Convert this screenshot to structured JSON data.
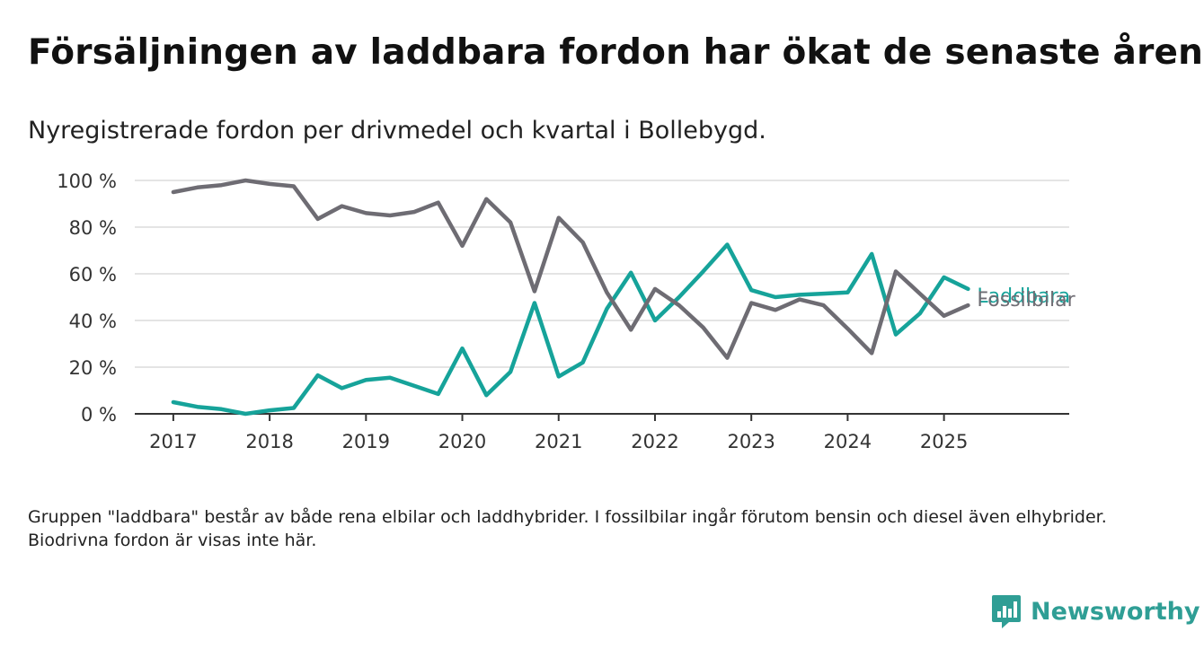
{
  "title": "Försäljningen av laddbara fordon har ökat de senaste åren",
  "subtitle": "Nyregistrerade fordon per drivmedel och kvartal i Bollebygd.",
  "note": "Gruppen \"laddbara\" består av både rena elbilar och laddhybrider. I fossilbilar ingår förutom bensin och diesel även elhybrider. Biodrivna fordon är visas inte här.",
  "brand": {
    "name": "Newsworthy",
    "icon": "newsworthy-logo-icon"
  },
  "colors": {
    "laddbara": "#16a39a",
    "fossil": "#6e6c73",
    "grid": "#dcdcdc",
    "axis": "#333333",
    "brand": "#2f9e95"
  },
  "chart_data": {
    "type": "line",
    "x": [
      2017.0,
      2017.25,
      2017.5,
      2017.75,
      2018.0,
      2018.25,
      2018.5,
      2018.75,
      2019.0,
      2019.25,
      2019.5,
      2019.75,
      2020.0,
      2020.25,
      2020.5,
      2020.75,
      2021.0,
      2021.25,
      2021.5,
      2021.75,
      2022.0,
      2022.25,
      2022.5,
      2022.75,
      2023.0,
      2023.25,
      2023.5,
      2023.75,
      2024.0,
      2024.25,
      2024.5,
      2024.75,
      2025.0,
      2025.25
    ],
    "xticks": [
      2017,
      2018,
      2019,
      2020,
      2021,
      2022,
      2023,
      2024,
      2025
    ],
    "xtick_labels": [
      "2017",
      "2018",
      "2019",
      "2020",
      "2021",
      "2022",
      "2023",
      "2024",
      "2025"
    ],
    "yticks": [
      0,
      20,
      40,
      60,
      80,
      100
    ],
    "ytick_labels": [
      "0 %",
      "20 %",
      "40 %",
      "60 %",
      "80 %",
      "100 %"
    ],
    "ylim": [
      0,
      100
    ],
    "xlim": [
      2016.6,
      2026.3
    ],
    "grid": true,
    "series": [
      {
        "name": "Fossilbilar",
        "color": "#6e6c73",
        "values": [
          95,
          97,
          98,
          100,
          98.5,
          97.5,
          83.5,
          89,
          86,
          85,
          86.5,
          90.5,
          72,
          92,
          82,
          52.5,
          84,
          73.5,
          52,
          36,
          53.5,
          46.5,
          37,
          24,
          47.5,
          44.5,
          49,
          46.5,
          36.5,
          26,
          61,
          51.5,
          42,
          46.5
        ]
      },
      {
        "name": "Laddbara",
        "color": "#16a39a",
        "values": [
          5,
          3,
          2,
          0,
          1.5,
          2.5,
          16.5,
          11,
          14.5,
          15.5,
          12,
          8.5,
          28,
          8,
          18,
          47.5,
          16,
          22,
          45,
          60.5,
          40,
          50,
          61,
          72.5,
          53,
          50,
          51,
          51.5,
          52,
          68.5,
          34,
          43,
          58.5,
          53.5
        ]
      }
    ]
  }
}
